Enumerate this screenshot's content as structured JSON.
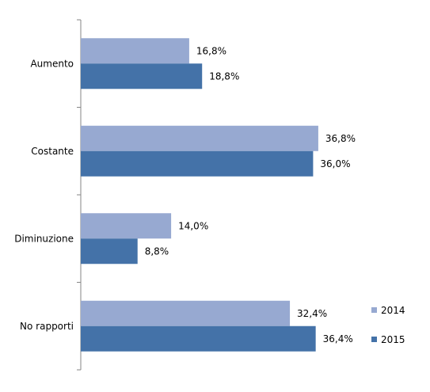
{
  "chart_data": {
    "type": "bar",
    "orientation": "horizontal",
    "categories": [
      "Aumento",
      "Costante",
      "Diminuzione",
      "No rapporti"
    ],
    "series": [
      {
        "name": "2014",
        "values": [
          16.8,
          36.8,
          14.0,
          32.4
        ],
        "labels": [
          "16,8%",
          "36,8%",
          "14,0%",
          "32,4%"
        ],
        "color": "#97a9d1"
      },
      {
        "name": "2015",
        "values": [
          18.8,
          36.0,
          8.8,
          36.4
        ],
        "labels": [
          "18,8%",
          "36,0%",
          "8,8%",
          "36,4%"
        ],
        "color": "#4472a8"
      }
    ],
    "xlim": [
      0,
      40
    ],
    "grid": false,
    "legend_position": "bottom-right"
  }
}
